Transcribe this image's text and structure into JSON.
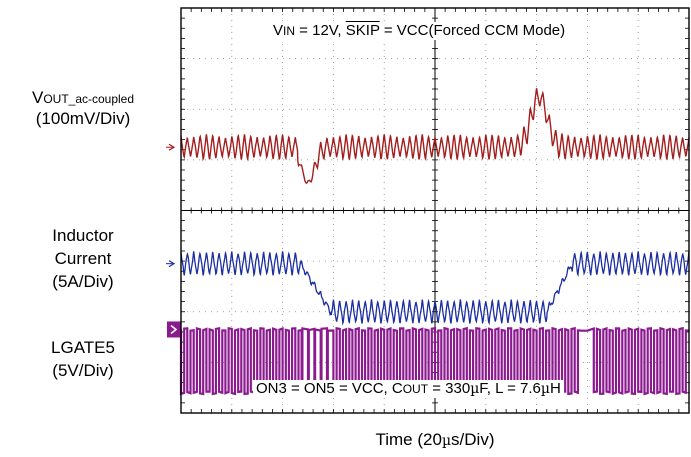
{
  "chart_data": {
    "type": "line",
    "title": "",
    "xlabel": {
      "prefix": "Time  (20",
      "mu": "µ",
      "suffix": "s/Div)"
    },
    "x_divisions": 10,
    "y_divisions": 8,
    "x_unit_per_div": "20us",
    "grid": "dotted",
    "annotations": {
      "top": {
        "v": "V",
        "v_sub": "IN",
        "mid": " = 12V, ",
        "skip": "SKIP",
        "rest": " = VCC(Forced CCM Mode)"
      },
      "bottom": {
        "a": "ON3 = ON5 = VCC, C",
        "c_sub": "OUT",
        "b": " = 330",
        "mu1": "µ",
        "c": "F, L = 7.6",
        "mu2": "µ",
        "d": "H"
      }
    },
    "channels": [
      {
        "name_main": "V",
        "name_sub": "OUT_ac-coupled",
        "scale": "(100mV/Div)",
        "color": "#a41d1d",
        "level_div": 2.75,
        "ripple_div": 0.45,
        "period_div": 0.125,
        "events": [
          {
            "t_div": 2.4,
            "kind": "undershoot",
            "amp_div": 0.7
          },
          {
            "t_div": 6.9,
            "kind": "overshoot",
            "amp_div": 1.0
          }
        ]
      },
      {
        "name_lines": [
          "Inductor",
          "Current"
        ],
        "scale": "(5A/Div)",
        "color": "#1b2ea0",
        "low_level_div": 5.05,
        "high_level_div": 6.0,
        "ripple_div": 0.45,
        "period_div": 0.125,
        "load_step": {
          "rise_start_div": 2.35,
          "rise_end_div": 2.95,
          "fall_start_div": 7.2,
          "fall_end_div": 7.7
        }
      },
      {
        "name_lines": [
          "LGATE5"
        ],
        "scale": "(5V/Div)",
        "color": "#8b1a8f",
        "low_level_div": 6.35,
        "high_level_div": 7.6,
        "period_div": 0.125,
        "gap_div": [
          7.85,
          8.05
        ]
      }
    ]
  }
}
